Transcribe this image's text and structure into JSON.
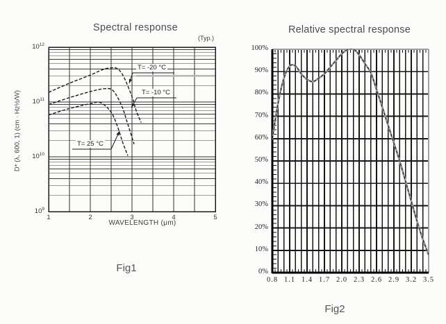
{
  "fig1": {
    "title": "Spectral response",
    "typ_label": "(Typ.)",
    "ylabel": "D* (λ, 600, 1) (cm · Hz½/W)",
    "xlabel": "WAVELENGTH (μm)",
    "caption": "Fig1",
    "y_tick_exponents": [
      12,
      11,
      10,
      9
    ],
    "x_ticks": [
      1,
      2,
      3,
      4,
      5
    ]
  },
  "fig2": {
    "title": "Relative spectral response",
    "caption": "Fig2",
    "y_tick_labels": [
      "100%",
      "90%",
      "80%",
      "70%",
      "60%",
      "50%",
      "40%",
      "30%",
      "20%",
      "10%",
      "0%"
    ],
    "x_tick_labels": [
      "0.8",
      "1.1",
      "1.4",
      "1.7",
      "2.0",
      "2.3",
      "2.6",
      "2.9",
      "3.2",
      "3.5"
    ]
  },
  "colors": {
    "grid": "#161616",
    "fig1_grid": "#2e2e2e",
    "curve_black": "#1b1b1b",
    "fig2_curve_gray": "#a2a2a2",
    "frame_gray": "#9f9f9f",
    "band_gray": "#b8b8b8",
    "title_text": "#4c4c4c"
  },
  "chart_data": [
    {
      "id": "fig1",
      "type": "line",
      "title": "Spectral response",
      "annotation": "(Typ.)",
      "xlabel": "WAVELENGTH (μm)",
      "ylabel": "D* (λ, 600, 1) (cm · Hz½/W)",
      "x_range": [
        1,
        5
      ],
      "y_scale": "log",
      "y_range": [
        1000000000.0,
        1000000000000.0
      ],
      "grid": true,
      "line_style": "dashed",
      "series": [
        {
          "name": "T= -20 °C",
          "points": [
            [
              1,
              150000000000.0
            ],
            [
              1.5,
              220000000000.0
            ],
            [
              2.0,
              310000000000.0
            ],
            [
              2.3,
              390000000000.0
            ],
            [
              2.5,
              420000000000.0
            ],
            [
              2.65,
              405000000000.0
            ],
            [
              2.8,
              290000000000.0
            ],
            [
              3.0,
              125000000000.0
            ],
            [
              3.1,
              70000000000.0
            ],
            [
              3.22,
              42000000000.0
            ]
          ]
        },
        {
          "name": "T= -10 °C",
          "points": [
            [
              1,
              90000000000.0
            ],
            [
              1.5,
              120000000000.0
            ],
            [
              2.0,
              155000000000.0
            ],
            [
              2.35,
              175000000000.0
            ],
            [
              2.55,
              160000000000.0
            ],
            [
              2.75,
              86000000000.0
            ],
            [
              2.88,
              44000000000.0
            ],
            [
              3.05,
              17000000000.0
            ]
          ]
        },
        {
          "name": "T= 25 °C",
          "points": [
            [
              1,
              58000000000.0
            ],
            [
              1.5,
              76000000000.0
            ],
            [
              2.0,
              93000000000.0
            ],
            [
              2.25,
              97000000000.0
            ],
            [
              2.5,
              65000000000.0
            ],
            [
              2.65,
              36000000000.0
            ],
            [
              2.78,
              18000000000.0
            ],
            [
              2.9,
              10500000000.0
            ]
          ]
        }
      ]
    },
    {
      "id": "fig2",
      "type": "line",
      "title": "Relative spectral response",
      "xlabel": "",
      "ylabel": "",
      "x_range": [
        0.8,
        3.5
      ],
      "y_range": [
        0,
        100
      ],
      "y_unit": "%",
      "grid": true,
      "x": [
        0.8,
        0.9,
        1.0,
        1.1,
        1.2,
        1.3,
        1.4,
        1.5,
        1.6,
        1.7,
        1.8,
        1.9,
        2.0,
        2.1,
        2.2,
        2.3,
        2.4,
        2.5,
        2.6,
        2.7,
        2.8,
        2.9,
        3.0,
        3.1,
        3.2,
        3.3,
        3.4,
        3.5
      ],
      "values": [
        60,
        76,
        87,
        92.5,
        92.5,
        89,
        86.5,
        85.5,
        87,
        89,
        92,
        95,
        98,
        99.8,
        100,
        97.5,
        93.5,
        89.5,
        82,
        74,
        66,
        58,
        50,
        41,
        32,
        23,
        15,
        8
      ]
    }
  ]
}
